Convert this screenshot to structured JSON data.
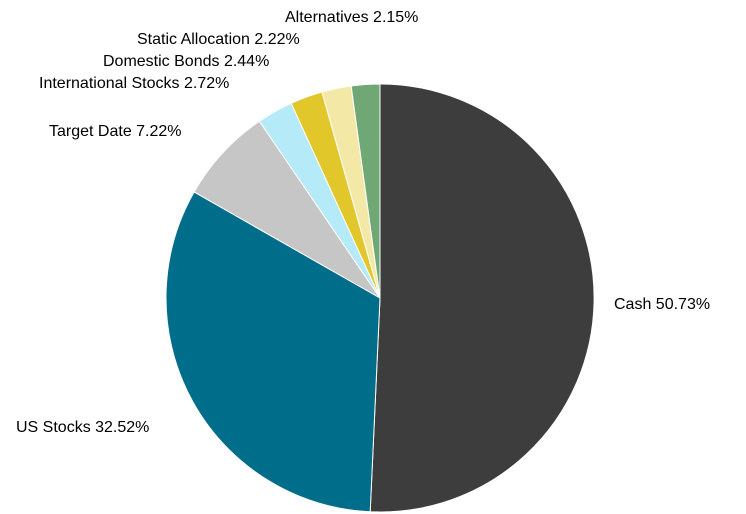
{
  "chart_data": {
    "type": "pie",
    "title": "",
    "start_angle_deg": 0,
    "direction": "clockwise",
    "label_format": "{name} {value}%",
    "slices": [
      {
        "name": "Cash",
        "value": 50.73,
        "color": "#3d3d3d"
      },
      {
        "name": "US Stocks",
        "value": 32.52,
        "color": "#006d8a"
      },
      {
        "name": "Target Date",
        "value": 7.22,
        "color": "#c6c6c6"
      },
      {
        "name": "International Stocks",
        "value": 2.72,
        "color": "#b5eaf9"
      },
      {
        "name": "Domestic Bonds",
        "value": 2.44,
        "color": "#e2c72b"
      },
      {
        "name": "Static Allocation",
        "value": 2.22,
        "color": "#f4e8a6"
      },
      {
        "name": "Alternatives",
        "value": 2.15,
        "color": "#6fa874"
      }
    ]
  }
}
